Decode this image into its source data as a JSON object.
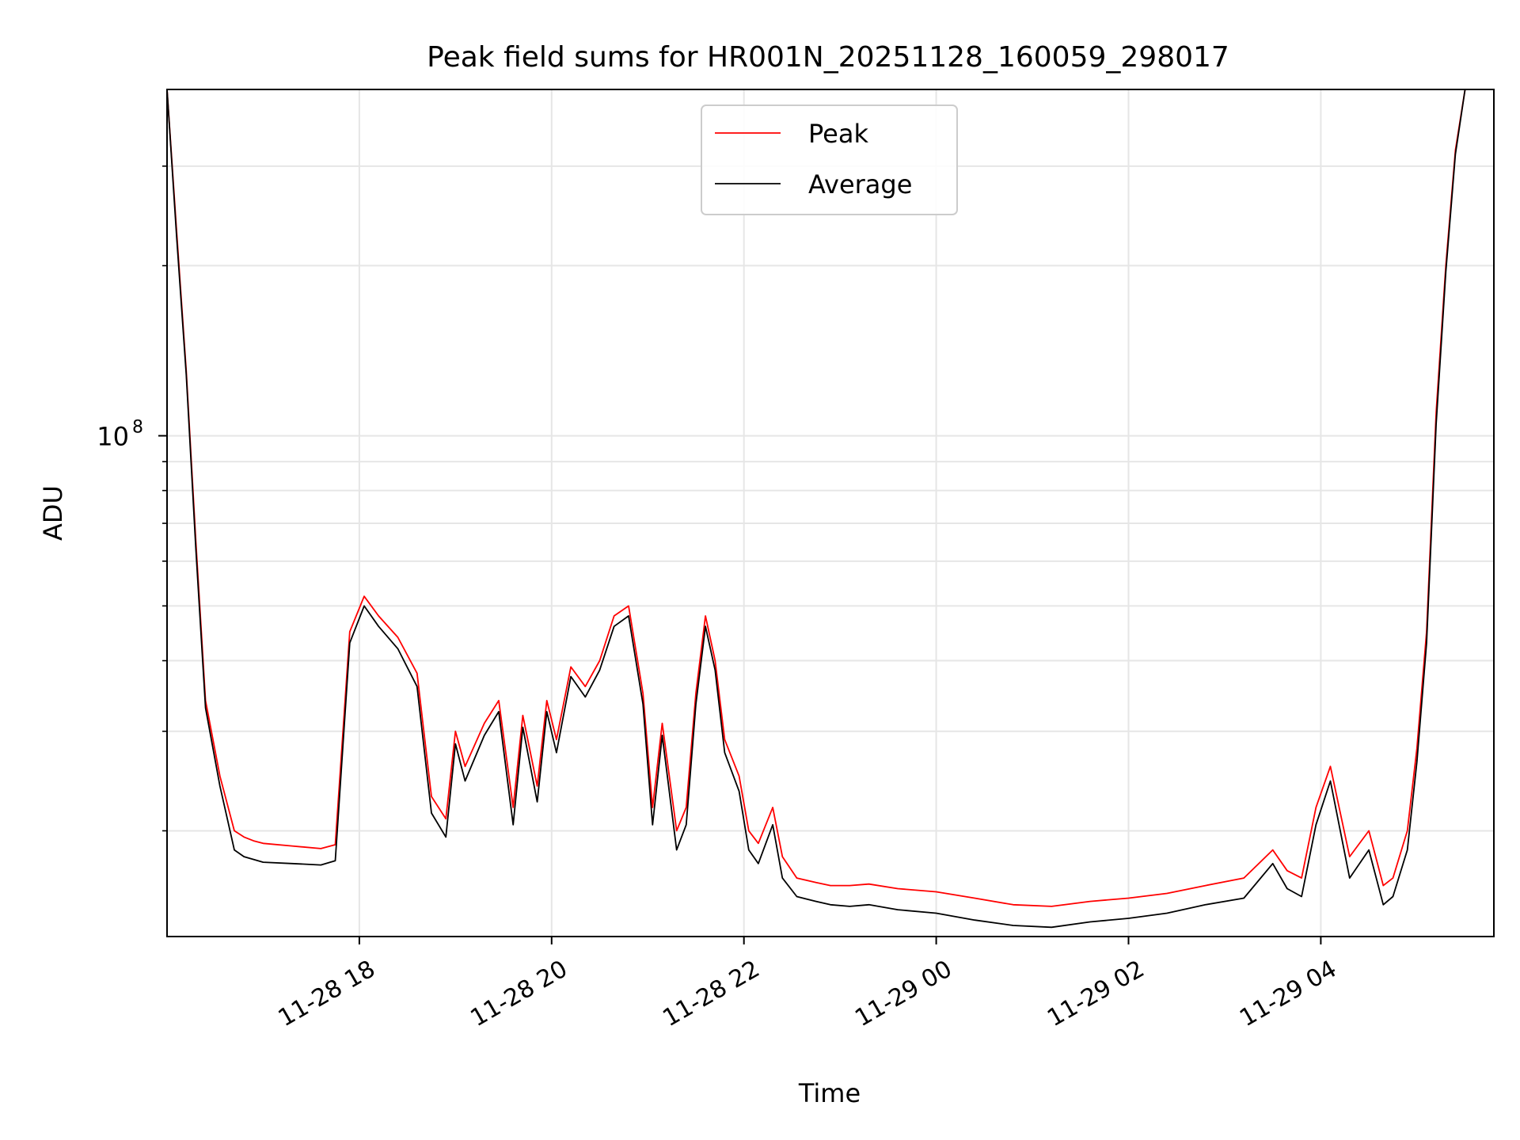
{
  "chart_data": {
    "type": "line",
    "title": "Peak field sums for HR001N_20251128_160059_298017",
    "xlabel": "Time",
    "ylabel": "ADU",
    "yscale": "log",
    "ylim": [
      13000000,
      410000000
    ],
    "xlim_hours": [
      16.0,
      29.8
    ],
    "x_unit": "hours since 2025-11-28 00:00",
    "grid": true,
    "legend_position": "upper center",
    "x_ticks": [
      {
        "value": 18,
        "label": "11-28 18"
      },
      {
        "value": 20,
        "label": "11-28 20"
      },
      {
        "value": 22,
        "label": "11-28 22"
      },
      {
        "value": 24,
        "label": "11-29 00"
      },
      {
        "value": 26,
        "label": "11-29 02"
      },
      {
        "value": 28,
        "label": "11-29 04"
      }
    ],
    "y_major_ticks": [
      {
        "value": 100000000,
        "base": "10",
        "exp": "8"
      }
    ],
    "y_minor_ticks": [
      20000000,
      30000000,
      40000000,
      50000000,
      60000000,
      70000000,
      80000000,
      90000000,
      200000000,
      300000000
    ],
    "series": [
      {
        "name": "Peak",
        "color": "#ff0000",
        "x": [
          16.0,
          16.1,
          16.2,
          16.3,
          16.4,
          16.55,
          16.7,
          16.8,
          16.9,
          17.0,
          17.3,
          17.6,
          17.75,
          17.9,
          18.05,
          18.2,
          18.4,
          18.6,
          18.75,
          18.9,
          19.0,
          19.1,
          19.3,
          19.45,
          19.6,
          19.7,
          19.85,
          19.95,
          20.05,
          20.2,
          20.35,
          20.5,
          20.65,
          20.8,
          20.95,
          21.05,
          21.15,
          21.3,
          21.4,
          21.5,
          21.6,
          21.7,
          21.8,
          21.95,
          22.05,
          22.15,
          22.3,
          22.4,
          22.55,
          22.75,
          22.9,
          23.1,
          23.3,
          23.6,
          24.0,
          24.4,
          24.8,
          25.2,
          25.6,
          26.0,
          26.4,
          26.8,
          27.2,
          27.5,
          27.65,
          27.8,
          27.95,
          28.1,
          28.3,
          28.5,
          28.65,
          28.75,
          28.9,
          29.0,
          29.1,
          29.2,
          29.3,
          29.4,
          29.5,
          29.6,
          29.8
        ],
        "y": [
          410000000,
          230000000,
          130000000,
          65000000,
          34000000,
          25000000,
          20000000,
          19500000,
          19200000,
          19000000,
          18800000,
          18600000,
          18900000,
          45000000,
          52000000,
          48000000,
          44000000,
          38000000,
          23000000,
          21000000,
          30000000,
          26000000,
          31000000,
          34000000,
          22000000,
          32000000,
          24000000,
          34000000,
          29000000,
          39000000,
          36000000,
          40000000,
          48000000,
          50000000,
          35000000,
          22000000,
          31000000,
          20000000,
          22000000,
          35000000,
          48000000,
          40000000,
          29000000,
          25000000,
          20000000,
          19000000,
          22000000,
          18000000,
          16500000,
          16200000,
          16000000,
          16000000,
          16100000,
          15800000,
          15600000,
          15200000,
          14800000,
          14700000,
          15000000,
          15200000,
          15500000,
          16000000,
          16500000,
          18500000,
          17000000,
          16500000,
          22000000,
          26000000,
          18000000,
          20000000,
          16000000,
          16500000,
          20000000,
          28000000,
          45000000,
          110000000,
          200000000,
          320000000,
          410000000,
          410000000,
          410000000
        ]
      },
      {
        "name": "Average",
        "color": "#000000",
        "x": [
          16.0,
          16.1,
          16.2,
          16.3,
          16.4,
          16.55,
          16.7,
          16.8,
          16.9,
          17.0,
          17.3,
          17.6,
          17.75,
          17.9,
          18.05,
          18.2,
          18.4,
          18.6,
          18.75,
          18.9,
          19.0,
          19.1,
          19.3,
          19.45,
          19.6,
          19.7,
          19.85,
          19.95,
          20.05,
          20.2,
          20.35,
          20.5,
          20.65,
          20.8,
          20.95,
          21.05,
          21.15,
          21.3,
          21.4,
          21.5,
          21.6,
          21.7,
          21.8,
          21.95,
          22.05,
          22.15,
          22.3,
          22.4,
          22.55,
          22.75,
          22.9,
          23.1,
          23.3,
          23.6,
          24.0,
          24.4,
          24.8,
          25.2,
          25.6,
          26.0,
          26.4,
          26.8,
          27.2,
          27.5,
          27.65,
          27.8,
          27.95,
          28.1,
          28.3,
          28.5,
          28.65,
          28.75,
          28.9,
          29.0,
          29.1,
          29.2,
          29.3,
          29.4,
          29.5,
          29.6,
          29.8
        ],
        "y": [
          410000000,
          225000000,
          128000000,
          63000000,
          33000000,
          24000000,
          18500000,
          18000000,
          17800000,
          17600000,
          17500000,
          17400000,
          17700000,
          43000000,
          50000000,
          46000000,
          42000000,
          36000000,
          21500000,
          19500000,
          28500000,
          24500000,
          29500000,
          32500000,
          20500000,
          30500000,
          22500000,
          32500000,
          27500000,
          37500000,
          34500000,
          38500000,
          46000000,
          48000000,
          33500000,
          20500000,
          29500000,
          18500000,
          20500000,
          33500000,
          46000000,
          38500000,
          27500000,
          23500000,
          18500000,
          17500000,
          20500000,
          16500000,
          15300000,
          15000000,
          14800000,
          14700000,
          14800000,
          14500000,
          14300000,
          13900000,
          13600000,
          13500000,
          13800000,
          14000000,
          14300000,
          14800000,
          15200000,
          17500000,
          15800000,
          15300000,
          20500000,
          24500000,
          16500000,
          18500000,
          14800000,
          15300000,
          18500000,
          26500000,
          43000000,
          105000000,
          195000000,
          315000000,
          410000000,
          410000000,
          410000000
        ]
      }
    ]
  }
}
